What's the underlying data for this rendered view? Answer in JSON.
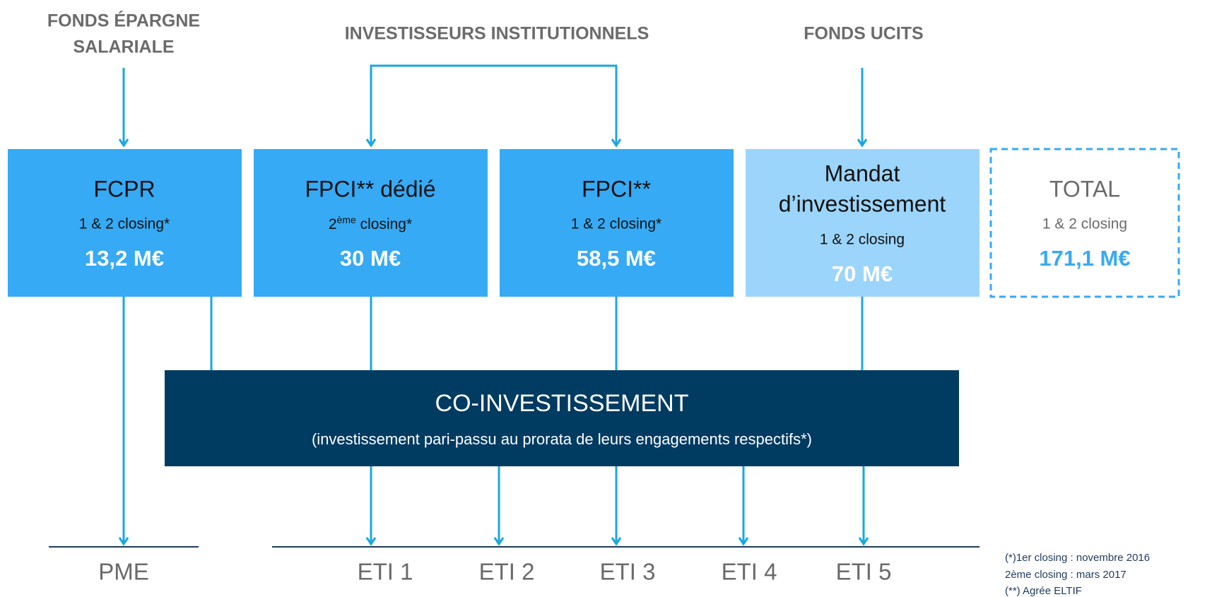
{
  "headers": [
    "FONDS ÉPARGNE",
    "SALARIALE",
    "INVESTISSEURS INSTITUTIONNELS",
    "FONDS UCITS"
  ],
  "boxes": [
    {
      "title": "FCPR",
      "subtitle": "1 & 2 closing*",
      "amount": "13,2 M€"
    },
    {
      "title": "FPCI** dédié",
      "subtitle_pre": "2",
      "subtitle_sup": "ème",
      "subtitle_post": " closing*",
      "amount": "30 M€"
    },
    {
      "title": "FPCI**",
      "subtitle": "1 & 2 closing*",
      "amount": "58,5 M€"
    },
    {
      "title_lines": [
        "Mandat",
        "d’investissement"
      ],
      "subtitle": "1 & 2 closing",
      "amount": "70 M€"
    },
    {
      "title": "TOTAL",
      "subtitle": "1 & 2 closing",
      "amount": "171,1 M€"
    }
  ],
  "coinvest": {
    "title": "CO-INVESTISSEMENT",
    "subtitle": "(investissement pari-passu au prorata de leurs engagements respectifs*)"
  },
  "targets": [
    "PME",
    "ETI 1",
    "ETI 2",
    "ETI 3",
    "ETI 4",
    "ETI 5"
  ],
  "footnotes": [
    "(*)1er closing : novembre  2016",
    "2ème closing : mars 2017",
    "(**)  Agrée ELTIF"
  ]
}
